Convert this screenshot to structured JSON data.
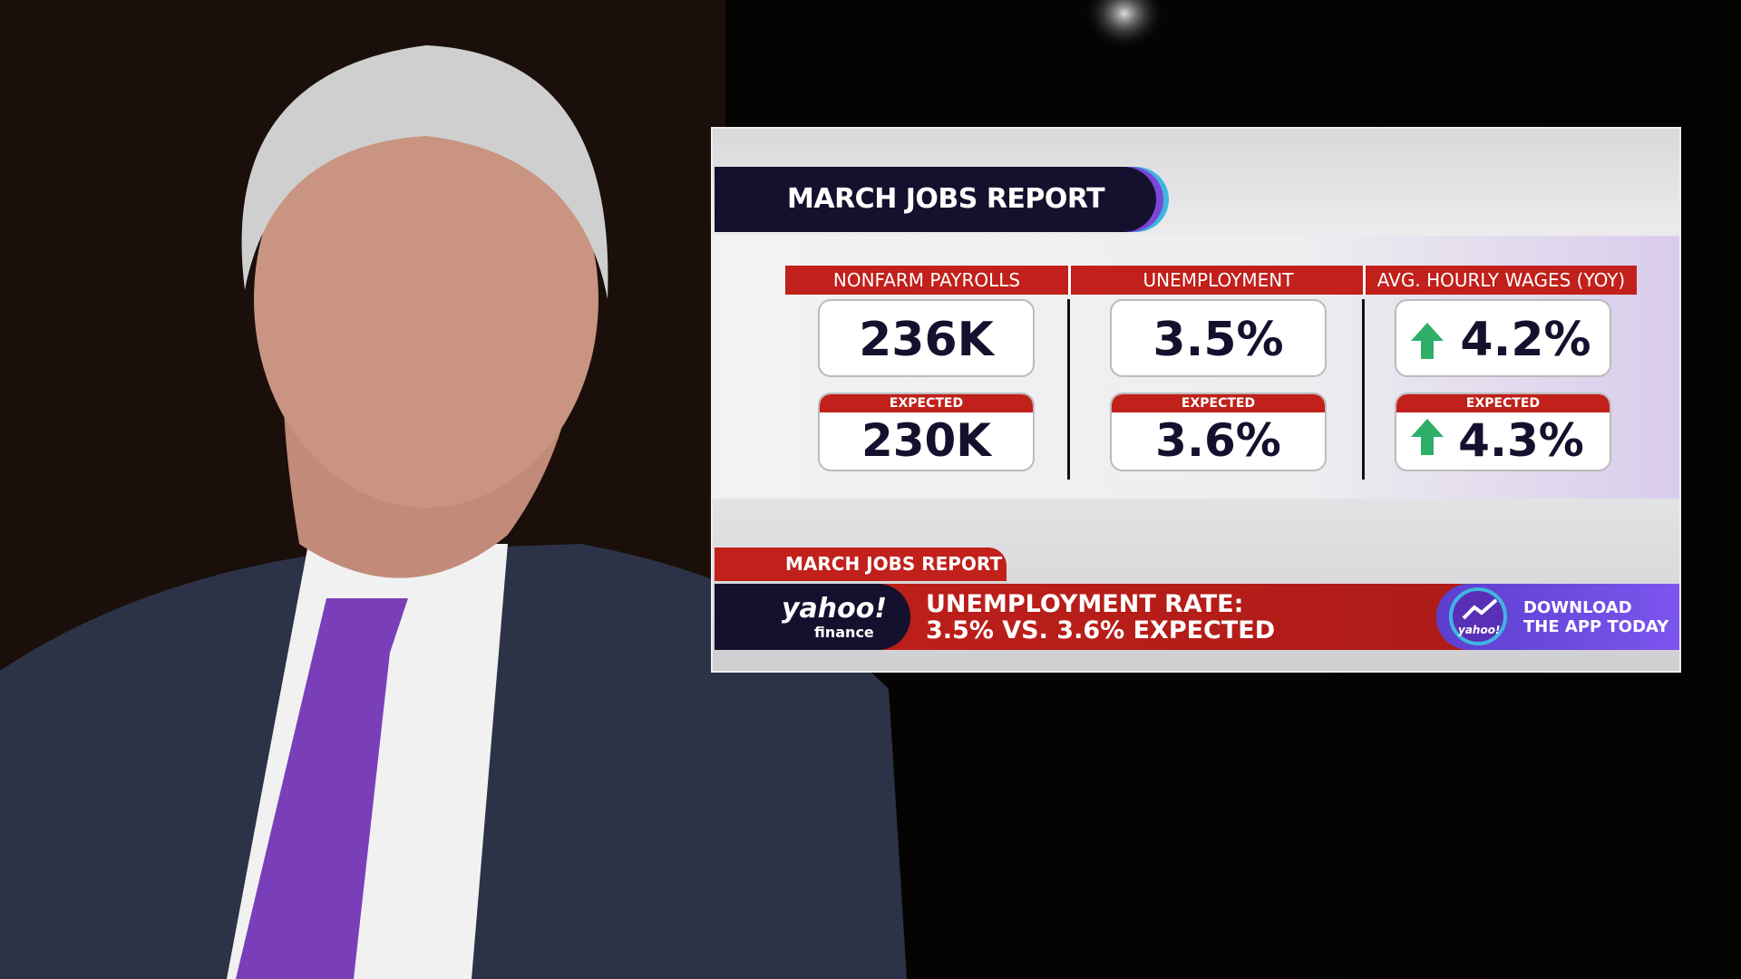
{
  "header": {
    "title": "MARCH JOBS REPORT"
  },
  "metrics": [
    {
      "label": "NONFARM PAYROLLS",
      "actual": "236K",
      "expected_label": "EXPECTED",
      "expected": "230K"
    },
    {
      "label": "UNEMPLOYMENT",
      "actual": "3.5%",
      "expected_label": "EXPECTED",
      "expected": "3.6%"
    },
    {
      "label": "AVG. HOURLY WAGES (YOY)",
      "actual": "4.2%",
      "expected_label": "EXPECTED",
      "expected": "4.3%"
    }
  ],
  "ticker": {
    "tag": "MARCH JOBS REPORT",
    "brand": "yahoo!",
    "brand_sub": "finance",
    "headline": [
      "UNEMPLOYMENT RATE:",
      "3.5% VS. 3.6% EXPECTED"
    ],
    "app_logo": "yahoo!",
    "app_text": [
      "DOWNLOAD",
      "THE APP TODAY"
    ]
  }
}
